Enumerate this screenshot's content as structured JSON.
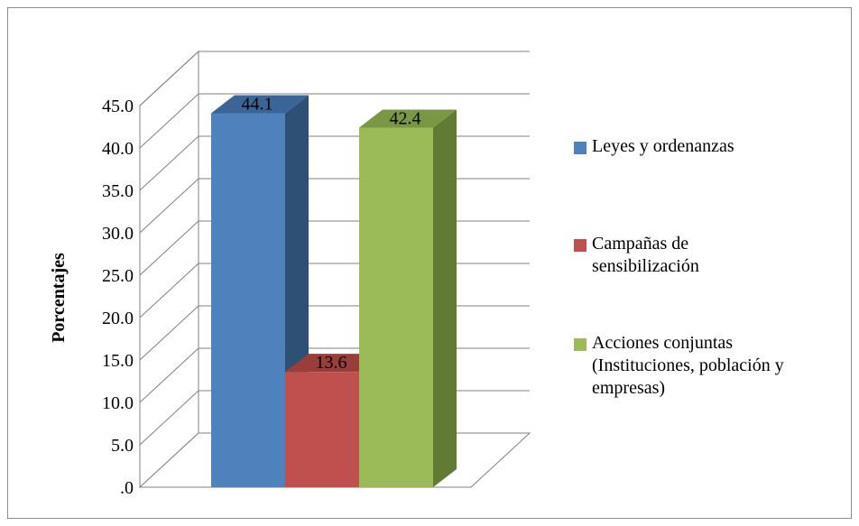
{
  "chart_data": {
    "type": "bar",
    "variant": "3d-column",
    "categories": [
      "Leyes y ordenanzas",
      "Campañas de sensibilización",
      "Acciones conjuntas (Instituciones, población y empresas)"
    ],
    "values": [
      44.1,
      13.6,
      42.4
    ],
    "data_labels": [
      "44.1",
      "13.6",
      "42.4"
    ],
    "ylabel": "Porcentajes",
    "ylim": [
      0,
      45
    ],
    "yticks": [
      ".0",
      "5.0",
      "10.0",
      "15.0",
      "20.0",
      "25.0",
      "30.0",
      "35.0",
      "40.0",
      "45.0"
    ],
    "grid": true,
    "legend_position": "right",
    "colors": {
      "front": [
        "#4f81bd",
        "#c0504d",
        "#9bbb59"
      ],
      "side": [
        "#2f5075",
        "#7d2e2c",
        "#617a34"
      ],
      "top": [
        "#3b6596",
        "#9a3e3b",
        "#7a9746"
      ]
    }
  },
  "legend": [
    {
      "lines": [
        "Leyes y ordenanzas"
      ],
      "color": "#4f81bd"
    },
    {
      "lines": [
        "Campañas de",
        "sensibilización"
      ],
      "color": "#c0504d"
    },
    {
      "lines": [
        "Acciones conjuntas",
        "(Instituciones, población y",
        "empresas)"
      ],
      "color": "#9bbb59"
    }
  ]
}
